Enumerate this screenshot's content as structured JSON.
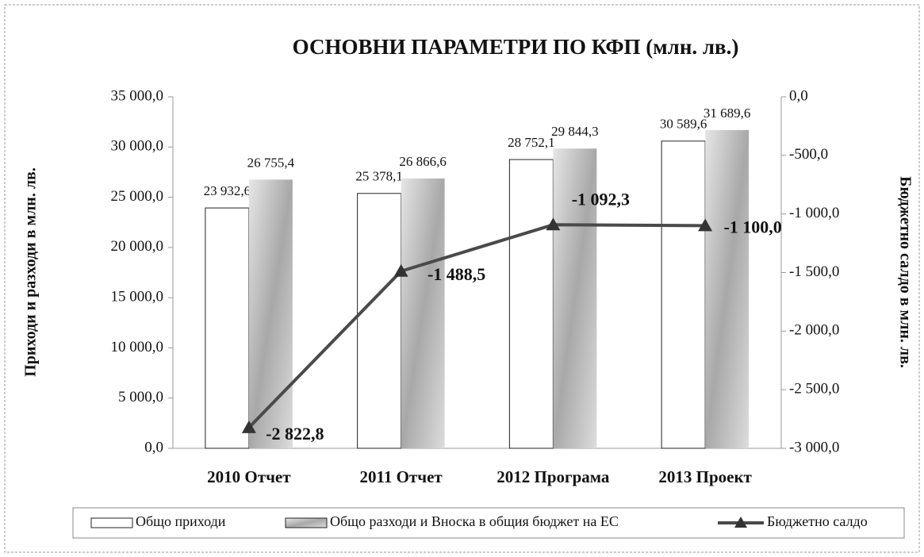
{
  "chart_data": {
    "type": "bar",
    "title": "ОСНОВНИ ПАРАМЕТРИ ПО КФП (млн. лв.)",
    "y_label": "Приходи и разходи в млн. лв.",
    "y2_label": "Бюджетно салдо в млн. лв.",
    "categories": [
      "2010 Отчет",
      "2011 Отчет",
      "2012 Програма",
      "2013 Проект"
    ],
    "series": [
      {
        "name": "Общо приходи",
        "color": "#ffffff",
        "values": [
          23932.6,
          25378.1,
          28752.1,
          30589.6
        ],
        "value_labels": [
          "23 932,6",
          "25 378,1",
          "28 752,1",
          "30 589,6"
        ]
      },
      {
        "name": "Общо разходи и Вноска в общия бюджет на ЕС",
        "color": "#c4c4c4",
        "values": [
          26755.4,
          26866.6,
          29844.3,
          31689.6
        ],
        "value_labels": [
          "26 755,4",
          "26 866,6",
          "29 844,3",
          "31 689,6"
        ]
      },
      {
        "name": "Бюджетно салдо",
        "color": "#4a4a4a",
        "axis": "y2",
        "values": [
          -2822.8,
          -1488.5,
          -1092.3,
          -1100.0
        ],
        "value_labels": [
          "-2 822,8",
          "-1 488,5",
          "-1 092,3",
          "-1 100,0"
        ]
      }
    ],
    "ylim": [
      0,
      35000
    ],
    "yticks": [
      {
        "value": 0,
        "label": "0,0"
      },
      {
        "value": 5000,
        "label": "5 000,0"
      },
      {
        "value": 10000,
        "label": "10 000,0"
      },
      {
        "value": 15000,
        "label": "15 000,0"
      },
      {
        "value": 20000,
        "label": "20 000,0"
      },
      {
        "value": 25000,
        "label": "25 000,0"
      },
      {
        "value": 30000,
        "label": "30 000,0"
      },
      {
        "value": 35000,
        "label": "35 000,0"
      }
    ],
    "y2lim": [
      -3000,
      0
    ],
    "y2ticks": [
      {
        "value": -3000,
        "label": "-3 000,0"
      },
      {
        "value": -2500,
        "label": "-2 500,0"
      },
      {
        "value": -2000,
        "label": "-2 000,0"
      },
      {
        "value": -1500,
        "label": "-1 500,0"
      },
      {
        "value": -1000,
        "label": "-1 000,0"
      },
      {
        "value": -500,
        "label": "-500,0"
      },
      {
        "value": 0,
        "label": "0,0"
      }
    ],
    "grid": false,
    "legend": "bottom"
  }
}
